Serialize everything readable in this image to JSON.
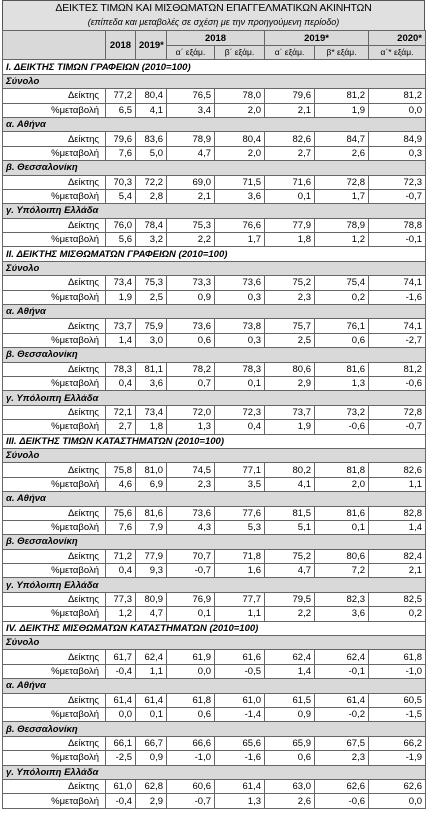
{
  "title": "ΔΕΙΚΤΕΣ ΤΙΜΩΝ ΚΑΙ ΜΙΣΘΩΜΑΤΩΝ ΕΠΑΓΓΕΛΜΑΤΙΚΩΝ ΑΚΙΝΗΤΩΝ",
  "subtitle": "(επίπεδα και μεταβολές σε σχέση με την προηγούμενη περίοδο)",
  "header": {
    "years": [
      "2018",
      "2019*"
    ],
    "groups": [
      "2018",
      "2019*",
      "2020*"
    ],
    "halves": [
      "α΄ εξάμ.",
      "β΄ εξάμ.",
      "α΄ εξάμ.",
      "β* εξάμ.",
      "α΄* εξάμ."
    ]
  },
  "sections": [
    {
      "title": "I. ΔΕΙΚΤΗΣ ΤΙΜΩΝ ΓΡΑΦΕΙΩΝ (2010=100)",
      "groups": [
        {
          "name": "Σύνολο",
          "rows": [
            {
              "label": "Δείκτης",
              "values": [
                "77,2",
                "80,4",
                "76,5",
                "78,0",
                "79,6",
                "81,2",
                "81,2"
              ]
            },
            {
              "label": "%μεταβολή",
              "values": [
                "6,5",
                "4,1",
                "3,4",
                "2,0",
                "2,1",
                "1,9",
                "0,0"
              ]
            }
          ]
        },
        {
          "name": "α. Αθήνα",
          "rows": [
            {
              "label": "Δείκτης",
              "values": [
                "79,6",
                "83,6",
                "78,9",
                "80,4",
                "82,6",
                "84,7",
                "84,9"
              ]
            },
            {
              "label": "%μεταβολή",
              "values": [
                "7,6",
                "5,0",
                "4,7",
                "2,0",
                "2,7",
                "2,6",
                "0,3"
              ]
            }
          ]
        },
        {
          "name": "β. Θεσσαλονίκη",
          "rows": [
            {
              "label": "Δείκτης",
              "values": [
                "70,3",
                "72,2",
                "69,0",
                "71,5",
                "71,6",
                "72,8",
                "72,3"
              ]
            },
            {
              "label": "%μεταβολή",
              "values": [
                "5,4",
                "2,8",
                "2,1",
                "3,6",
                "0,1",
                "1,7",
                "-0,7"
              ]
            }
          ]
        },
        {
          "name": "γ. Υπόλοιπη Ελλάδα",
          "rows": [
            {
              "label": "Δείκτης",
              "values": [
                "76,0",
                "78,4",
                "75,3",
                "76,6",
                "77,9",
                "78,9",
                "78,8"
              ]
            },
            {
              "label": "%μεταβολή",
              "values": [
                "5,6",
                "3,2",
                "2,2",
                "1,7",
                "1,8",
                "1,2",
                "-0,1"
              ]
            }
          ]
        }
      ]
    },
    {
      "title": "II. ΔΕΙΚΤΗΣ ΜΙΣΘΩΜΑΤΩΝ ΓΡΑΦΕΙΩΝ (2010=100)",
      "groups": [
        {
          "name": "Σύνολο",
          "rows": [
            {
              "label": "Δείκτης",
              "values": [
                "73,4",
                "75,3",
                "73,3",
                "73,6",
                "75,2",
                "75,4",
                "74,1"
              ]
            },
            {
              "label": "%μεταβολή",
              "values": [
                "1,9",
                "2,5",
                "0,9",
                "0,3",
                "2,3",
                "0,2",
                "-1,6"
              ]
            }
          ]
        },
        {
          "name": "α. Αθήνα",
          "rows": [
            {
              "label": "Δείκτης",
              "values": [
                "73,7",
                "75,9",
                "73,6",
                "73,8",
                "75,7",
                "76,1",
                "74,1"
              ]
            },
            {
              "label": "%μεταβολή",
              "values": [
                "1,4",
                "3,0",
                "0,6",
                "0,3",
                "2,5",
                "0,6",
                "-2,7"
              ]
            }
          ]
        },
        {
          "name": "β. Θεσσαλονίκη",
          "rows": [
            {
              "label": "Δείκτης",
              "values": [
                "78,3",
                "81,1",
                "78,2",
                "78,3",
                "80,6",
                "81,6",
                "81,2"
              ]
            },
            {
              "label": "%μεταβολή",
              "values": [
                "0,4",
                "3,6",
                "0,7",
                "0,1",
                "2,9",
                "1,3",
                "-0,6"
              ]
            }
          ]
        },
        {
          "name": "γ. Υπόλοιπη Ελλάδα",
          "rows": [
            {
              "label": "Δείκτης",
              "values": [
                "72,1",
                "73,4",
                "72,0",
                "72,3",
                "73,7",
                "73,2",
                "72,8"
              ]
            },
            {
              "label": "%μεταβολή",
              "values": [
                "2,7",
                "1,8",
                "1,3",
                "0,4",
                "1,9",
                "-0,6",
                "-0,7"
              ]
            }
          ]
        }
      ]
    },
    {
      "title": "III. ΔΕΙΚΤΗΣ ΤΙΜΩΝ ΚΑΤΑΣΤΗΜΑΤΩΝ (2010=100)",
      "groups": [
        {
          "name": "Σύνολο",
          "rows": [
            {
              "label": "Δείκτης",
              "values": [
                "75,8",
                "81,0",
                "74,5",
                "77,1",
                "80,2",
                "81,8",
                "82,6"
              ]
            },
            {
              "label": "%μεταβολή",
              "values": [
                "4,6",
                "6,9",
                "2,3",
                "3,5",
                "4,1",
                "2,0",
                "1,1"
              ]
            }
          ]
        },
        {
          "name": "α. Αθήνα",
          "rows": [
            {
              "label": "Δείκτης",
              "values": [
                "75,6",
                "81,6",
                "73,6",
                "77,6",
                "81,5",
                "81,6",
                "82,8"
              ]
            },
            {
              "label": "%μεταβολή",
              "values": [
                "7,6",
                "7,9",
                "4,3",
                "5,3",
                "5,1",
                "0,1",
                "1,4"
              ]
            }
          ]
        },
        {
          "name": "β. Θεσσαλονίκη",
          "rows": [
            {
              "label": "Δείκτης",
              "values": [
                "71,2",
                "77,9",
                "70,7",
                "71,8",
                "75,2",
                "80,6",
                "82,4"
              ]
            },
            {
              "label": "%μεταβολή",
              "values": [
                "0,4",
                "9,3",
                "-0,7",
                "1,6",
                "4,7",
                "7,2",
                "2,1"
              ]
            }
          ]
        },
        {
          "name": "γ. Υπόλοιπη Ελλάδα",
          "rows": [
            {
              "label": "Δείκτης",
              "values": [
                "77,3",
                "80,9",
                "76,9",
                "77,7",
                "79,5",
                "82,3",
                "82,5"
              ]
            },
            {
              "label": "%μεταβολή",
              "values": [
                "1,2",
                "4,7",
                "0,1",
                "1,1",
                "2,2",
                "3,6",
                "0,2"
              ]
            }
          ]
        }
      ]
    },
    {
      "title": "IV. ΔΕΙΚΤΗΣ ΜΙΣΘΩΜΑΤΩΝ ΚΑΤΑΣΤΗΜΑΤΩΝ (2010=100)",
      "groups": [
        {
          "name": "Σύνολο",
          "rows": [
            {
              "label": "Δείκτης",
              "values": [
                "61,7",
                "62,4",
                "61,9",
                "61,6",
                "62,4",
                "62,4",
                "61,8"
              ]
            },
            {
              "label": "%μεταβολή",
              "values": [
                "-0,4",
                "1,1",
                "0,0",
                "-0,5",
                "1,4",
                "-0,1",
                "-1,0"
              ]
            }
          ]
        },
        {
          "name": "α. Αθήνα",
          "rows": [
            {
              "label": "Δείκτης",
              "values": [
                "61,4",
                "61,4",
                "61,8",
                "61,0",
                "61,5",
                "61,4",
                "60,5"
              ]
            },
            {
              "label": "%μεταβολή",
              "values": [
                "0,0",
                "0,1",
                "0,6",
                "-1,4",
                "0,9",
                "-0,2",
                "-1,5"
              ]
            }
          ]
        },
        {
          "name": "β. Θεσσαλονίκη",
          "rows": [
            {
              "label": "Δείκτης",
              "values": [
                "66,1",
                "66,7",
                "66,6",
                "65,6",
                "65,9",
                "67,5",
                "66,2"
              ]
            },
            {
              "label": "%μεταβολή",
              "values": [
                "-2,5",
                "0,9",
                "-1,0",
                "-1,6",
                "0,6",
                "2,3",
                "-1,9"
              ]
            }
          ]
        },
        {
          "name": "γ. Υπόλοιπη Ελλάδα",
          "rows": [
            {
              "label": "Δείκτης",
              "values": [
                "61,0",
                "62,8",
                "60,6",
                "61,4",
                "63,0",
                "62,6",
                "62,6"
              ]
            },
            {
              "label": "%μεταβολή",
              "values": [
                "-0,4",
                "2,9",
                "-0,7",
                "1,3",
                "2,6",
                "-0,6",
                "0,0"
              ]
            }
          ]
        }
      ]
    }
  ]
}
